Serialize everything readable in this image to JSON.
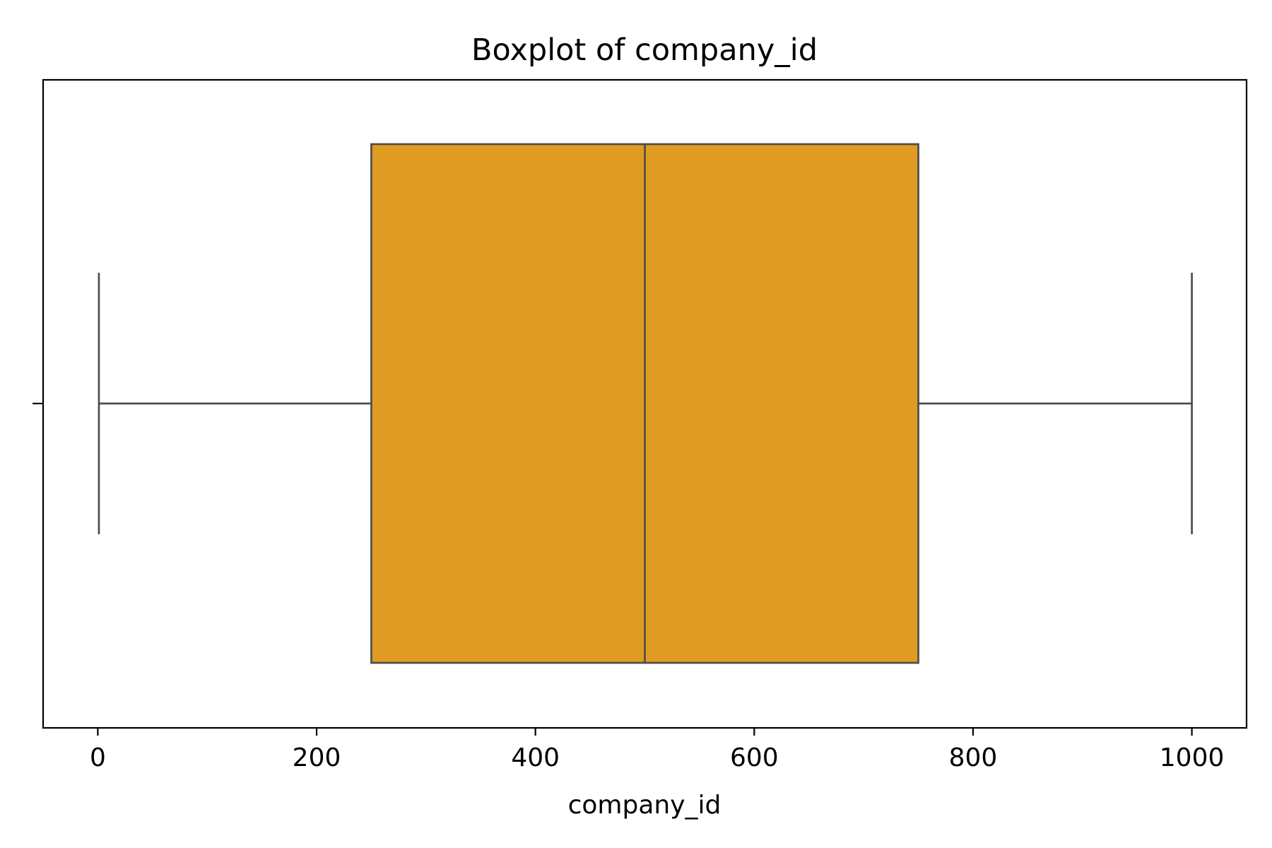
{
  "chart_data": {
    "type": "boxplot",
    "orientation": "horizontal",
    "title": "Boxplot of company_id",
    "xlabel": "company_id",
    "ylabel": "",
    "xlim": [
      -50,
      1050
    ],
    "x_ticks": [
      0,
      200,
      400,
      600,
      800,
      1000
    ],
    "x_tick_labels": [
      "0",
      "200",
      "400",
      "600",
      "800",
      "1000"
    ],
    "grid": false,
    "series": [
      {
        "name": "company_id",
        "whisker_low": 1,
        "q1": 250,
        "median": 500,
        "q3": 750,
        "whisker_high": 1000,
        "fill_color": "#e09c22",
        "line_color": "#4d4d4d"
      }
    ]
  }
}
